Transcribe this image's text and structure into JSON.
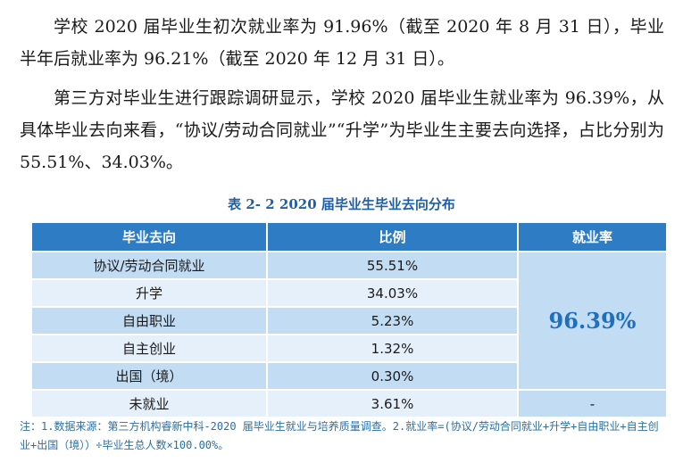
{
  "paragraphs": [
    "学校 2020 届毕业生初次就业率为 91.96%（截至 2020 年 8 月 31 日），毕业半年后就业率为 96.21%（截至 2020 年 12 月 31 日）。",
    "第三方对毕业生进行跟踪调研显示，学校 2020 届毕业生就业率为 96.39%，从具体毕业去向来看，“协议/劳动合同就业”“升学”为毕业生主要去向选择，占比分别为 55.51%、34.03%。"
  ],
  "table": {
    "caption": "表 2- 2    2020 届毕业生毕业去向分布",
    "headers": [
      "毕业去向",
      "比例",
      "就业率"
    ],
    "rows": [
      {
        "destination": "协议/劳动合同就业",
        "ratio": "55.51%"
      },
      {
        "destination": "升学",
        "ratio": "34.03%"
      },
      {
        "destination": "自由职业",
        "ratio": "5.23%"
      },
      {
        "destination": "自主创业",
        "ratio": "1.32%"
      },
      {
        "destination": "出国（境）",
        "ratio": "0.30%"
      },
      {
        "destination": "未就业",
        "ratio": "3.61%"
      }
    ],
    "employment_rate": "96.39%",
    "unemployed_rate_cell": "-"
  },
  "note": "注：1.数据来源：第三方机构睿新中科-2020 届毕业生就业与培养质量调查。2.就业率=(协议/劳动合同就业+升学+自由职业+自主创业+出国（境））÷毕业生总人数×100.00%。",
  "colors": {
    "header_bg": "#2e7cc4",
    "row_dark": "#c2dcf3",
    "row_light": "#e5f0fa",
    "accent_blue": "#1f6fbd"
  }
}
